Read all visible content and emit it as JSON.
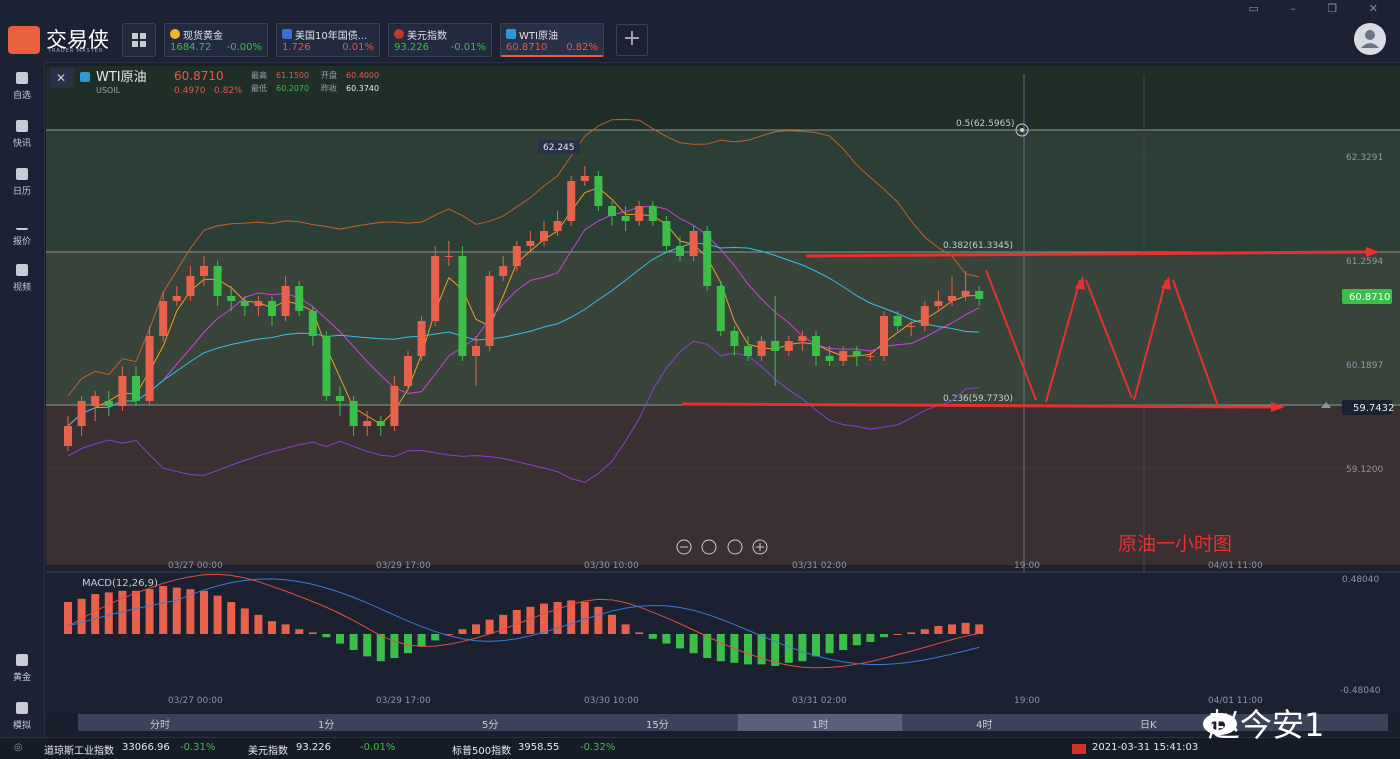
{
  "app": {
    "name": "交易侠",
    "sub": "TRADER MASTER"
  },
  "tabs": [
    {
      "name": "现货黄金",
      "price": "1684.72",
      "change": "-0.00%",
      "dir": "dn",
      "icon_color": "#f0b429"
    },
    {
      "name": "美国10年国债...",
      "price": "1.726",
      "change": "0.01%",
      "dir": "up",
      "icon_color": "#3a6fd8"
    },
    {
      "name": "美元指数",
      "price": "93.226",
      "change": "-0.01%",
      "dir": "dn",
      "icon_color": "#c0392b"
    },
    {
      "name": "WTI原油",
      "price": "60.8710",
      "change": "0.82%",
      "dir": "up",
      "icon_color": "#2b9bd8"
    }
  ],
  "add_tab": "+",
  "sidebar": [
    {
      "label": "自选"
    },
    {
      "label": "快讯"
    },
    {
      "label": "日历"
    },
    {
      "label": "报价"
    },
    {
      "label": "视频"
    }
  ],
  "sidebar_bottom": [
    {
      "label": "黄金"
    },
    {
      "label": "模拟"
    }
  ],
  "instrument": {
    "name": "WTI原油",
    "code": "USOIL",
    "price": "60.8710",
    "change": "0.4970",
    "pct": "0.82%",
    "high_label": "最高",
    "high": "61.1500",
    "open_label": "开盘",
    "open": "60.4000",
    "low_label": "最低",
    "low": "60.2070",
    "prev_label": "昨收",
    "prev": "60.3740"
  },
  "price_axis": [
    "62.3291",
    "61.2594",
    "60.1897",
    "59.1200"
  ],
  "current_price_tag": "60.8710",
  "support_tag": "59.7432",
  "fib": {
    "f05": "0.5(62.5965)",
    "f0382": "0.382(61.3345)",
    "f0236": "0.236(59.7730)"
  },
  "high_marker": "62.245",
  "chart_annotation": "原油一小时图",
  "time_axis": [
    "03/27 00:00",
    "03/29 17:00",
    "03/30 10:00",
    "03/31 02:00",
    "19:00",
    "04/01 11:00"
  ],
  "macd": {
    "label": "MACD(12,26,9)",
    "axis_top": "0.48040",
    "axis_bottom": "-0.48040"
  },
  "timeframes": [
    "分时",
    "1分",
    "5分",
    "15分",
    "1时",
    "4时",
    "日K"
  ],
  "active_timeframe": "1时",
  "status": [
    {
      "name": "道琼斯工业指数",
      "value": "33066.96",
      "change": "-0.31%"
    },
    {
      "name": "美元指数",
      "value": "93.226",
      "change": "-0.01%"
    },
    {
      "name": "标普500指数",
      "value": "3958.55",
      "change": "-0.32%"
    }
  ],
  "datetime": "2021-03-31 15:41:03",
  "watermark": "赵今安1",
  "chart_data": {
    "type": "candlestick",
    "series_candles": [
      [
        59.4,
        59.6,
        59.7,
        59.35
      ],
      [
        59.6,
        59.85,
        59.9,
        59.5
      ],
      [
        59.8,
        59.9,
        59.95,
        59.65
      ],
      [
        59.85,
        59.8,
        59.95,
        59.7
      ],
      [
        59.8,
        60.1,
        60.2,
        59.75
      ],
      [
        60.1,
        59.85,
        60.2,
        59.8
      ],
      [
        59.85,
        60.5,
        60.6,
        59.8
      ],
      [
        60.5,
        60.85,
        60.95,
        60.45
      ],
      [
        60.85,
        60.9,
        61.0,
        60.8
      ],
      [
        60.9,
        61.1,
        61.2,
        60.85
      ],
      [
        61.1,
        61.2,
        61.3,
        61.0
      ],
      [
        61.2,
        60.9,
        61.25,
        60.8
      ],
      [
        60.9,
        60.85,
        61.0,
        60.75
      ],
      [
        60.85,
        60.8,
        60.9,
        60.7
      ],
      [
        60.8,
        60.85,
        60.9,
        60.7
      ],
      [
        60.85,
        60.7,
        60.9,
        60.6
      ],
      [
        60.7,
        61.0,
        61.1,
        60.65
      ],
      [
        61.0,
        60.75,
        61.05,
        60.7
      ],
      [
        60.75,
        60.5,
        60.8,
        60.4
      ],
      [
        60.5,
        59.9,
        60.55,
        59.85
      ],
      [
        59.9,
        59.85,
        60.0,
        59.7
      ],
      [
        59.85,
        59.6,
        59.9,
        59.5
      ],
      [
        59.6,
        59.65,
        59.75,
        59.5
      ],
      [
        59.65,
        59.6,
        59.7,
        59.5
      ],
      [
        59.6,
        60.0,
        60.1,
        59.55
      ],
      [
        60.0,
        60.3,
        60.35,
        59.95
      ],
      [
        60.3,
        60.65,
        60.7,
        60.25
      ],
      [
        60.65,
        61.3,
        61.4,
        60.6
      ],
      [
        61.3,
        61.3,
        61.45,
        61.2
      ],
      [
        61.3,
        60.3,
        61.4,
        60.25
      ],
      [
        60.3,
        60.4,
        60.5,
        60.0
      ],
      [
        60.4,
        61.1,
        61.15,
        60.35
      ],
      [
        61.1,
        61.2,
        61.3,
        61.05
      ],
      [
        61.2,
        61.4,
        61.45,
        61.15
      ],
      [
        61.4,
        61.45,
        61.55,
        61.35
      ],
      [
        61.45,
        61.55,
        61.65,
        61.4
      ],
      [
        61.55,
        61.65,
        61.75,
        61.5
      ],
      [
        61.65,
        62.05,
        62.1,
        61.6
      ],
      [
        62.05,
        62.1,
        62.2,
        62.0
      ],
      [
        62.1,
        61.8,
        62.15,
        61.75
      ],
      [
        61.8,
        61.7,
        61.85,
        61.6
      ],
      [
        61.7,
        61.65,
        61.8,
        61.55
      ],
      [
        61.65,
        61.8,
        61.85,
        61.6
      ],
      [
        61.8,
        61.65,
        61.85,
        61.6
      ],
      [
        61.65,
        61.4,
        61.7,
        61.35
      ],
      [
        61.4,
        61.3,
        61.5,
        61.25
      ],
      [
        61.3,
        61.55,
        61.6,
        61.25
      ],
      [
        61.55,
        61.0,
        61.6,
        60.95
      ],
      [
        61.0,
        60.55,
        61.05,
        60.5
      ],
      [
        60.55,
        60.4,
        60.6,
        60.3
      ],
      [
        60.4,
        60.3,
        60.5,
        60.25
      ],
      [
        60.3,
        60.45,
        60.5,
        60.25
      ],
      [
        60.45,
        60.35,
        60.9,
        60.0
      ],
      [
        60.35,
        60.45,
        60.5,
        60.3
      ],
      [
        60.45,
        60.5,
        60.55,
        60.35
      ],
      [
        60.5,
        60.3,
        60.55,
        60.2
      ],
      [
        60.3,
        60.25,
        60.4,
        60.2
      ],
      [
        60.25,
        60.35,
        60.4,
        60.2
      ],
      [
        60.35,
        60.3,
        60.4,
        60.2
      ],
      [
        60.3,
        60.3,
        60.35,
        60.25
      ],
      [
        60.3,
        60.7,
        60.75,
        60.25
      ],
      [
        60.7,
        60.6,
        60.75,
        60.55
      ],
      [
        60.6,
        60.6,
        60.65,
        60.5
      ],
      [
        60.6,
        60.8,
        60.85,
        60.55
      ],
      [
        60.8,
        60.85,
        60.95,
        60.75
      ],
      [
        60.85,
        60.9,
        61.1,
        60.8
      ],
      [
        60.9,
        60.95,
        61.15,
        60.85
      ],
      [
        60.95,
        60.87,
        61.0,
        60.8
      ]
    ],
    "macd_hist": [
      0.2,
      0.22,
      0.25,
      0.26,
      0.27,
      0.27,
      0.28,
      0.3,
      0.29,
      0.28,
      0.27,
      0.24,
      0.2,
      0.16,
      0.12,
      0.08,
      0.06,
      0.03,
      0.01,
      -0.02,
      -0.06,
      -0.1,
      -0.14,
      -0.17,
      -0.15,
      -0.12,
      -0.08,
      -0.04,
      0.0,
      0.03,
      0.06,
      0.09,
      0.12,
      0.15,
      0.17,
      0.19,
      0.2,
      0.21,
      0.2,
      0.17,
      0.12,
      0.06,
      0.01,
      -0.03,
      -0.06,
      -0.09,
      -0.12,
      -0.15,
      -0.17,
      -0.18,
      -0.19,
      -0.19,
      -0.2,
      -0.18,
      -0.17,
      -0.14,
      -0.12,
      -0.1,
      -0.07,
      -0.05,
      -0.02,
      0.0,
      0.01,
      0.03,
      0.05,
      0.06,
      0.07,
      0.06
    ]
  }
}
